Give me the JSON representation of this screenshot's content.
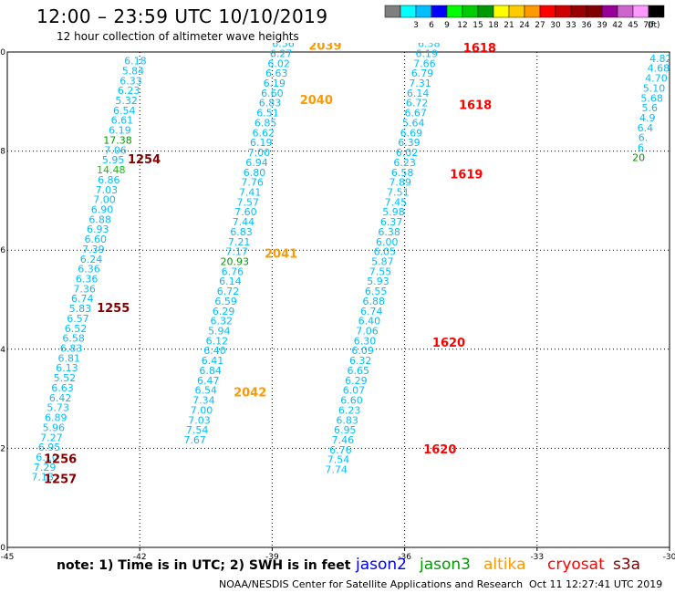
{
  "header": {
    "title": "12:00 – 23:59 UTC 10/10/2019",
    "subtitle": "12 hour collection of altimeter wave heights"
  },
  "colorbar": {
    "unit": "(ft)",
    "bins": [
      {
        "label": "",
        "color": "#7f7f7f"
      },
      {
        "label": "3",
        "color": "#00ffff"
      },
      {
        "label": "6",
        "color": "#00bfff"
      },
      {
        "label": "9",
        "color": "#0000ff"
      },
      {
        "label": "12",
        "color": "#00ff00"
      },
      {
        "label": "15",
        "color": "#00cc00"
      },
      {
        "label": "18",
        "color": "#009900"
      },
      {
        "label": "21",
        "color": "#ffff00"
      },
      {
        "label": "24",
        "color": "#ffcc00"
      },
      {
        "label": "27",
        "color": "#ff9900"
      },
      {
        "label": "30",
        "color": "#ff0000"
      },
      {
        "label": "33",
        "color": "#cc0000"
      },
      {
        "label": "36",
        "color": "#990000"
      },
      {
        "label": "39",
        "color": "#800000"
      },
      {
        "label": "42",
        "color": "#990099"
      },
      {
        "label": "45",
        "color": "#cc66cc"
      },
      {
        "label": "70",
        "color": "#ff99ff"
      },
      {
        "label": "",
        "color": "#000000"
      }
    ]
  },
  "footer": {
    "note": "note:  1) Time is in UTC;  2) SWH is in feet",
    "satellites": [
      {
        "name": "jason2",
        "color": "#0000ff"
      },
      {
        "name": "jason3",
        "color": "#009900"
      },
      {
        "name": "altika",
        "color": "#ff9900"
      },
      {
        "name": "cryosat",
        "color": "#ff0000"
      },
      {
        "name": "s3a",
        "color": "#800000"
      }
    ],
    "credit": "NOAA/NESDIS Center for Satellite Applications and Research",
    "timestamp": "Oct 11 12:27:41 UTC 2019"
  },
  "chart_data": {
    "type": "scatter",
    "title": "12:00 – 23:59 UTC 10/10/2019",
    "xlim": [
      -45,
      -30
    ],
    "ylim": [
      0,
      10
    ],
    "x_ticks": [
      "-45",
      "-42",
      "-39",
      "-36",
      "-33",
      "-30"
    ],
    "y_ticks": [
      "0",
      "2",
      "4",
      "6",
      "8",
      "10"
    ],
    "grid": true,
    "colors": {
      "swh": "#00bfff",
      "green": "#009900",
      "lime": "#00cc00"
    },
    "tracks": [
      {
        "name": "s3a pass A",
        "color": "#00bfff",
        "points": [
          {
            "x": -42.1,
            "y": 9.75,
            "v": "6.18"
          },
          {
            "x": -42.15,
            "y": 9.55,
            "v": "5.84"
          },
          {
            "x": -42.2,
            "y": 9.35,
            "v": "6.33"
          },
          {
            "x": -42.25,
            "y": 9.15,
            "v": "6.23"
          },
          {
            "x": -42.3,
            "y": 8.95,
            "v": "5.32"
          },
          {
            "x": -42.35,
            "y": 8.75,
            "v": "6.54"
          },
          {
            "x": -42.4,
            "y": 8.55,
            "v": "6.61"
          },
          {
            "x": -42.45,
            "y": 8.35,
            "v": "6.19"
          },
          {
            "x": -42.5,
            "y": 8.15,
            "v": "17.38",
            "c": "#009900"
          },
          {
            "x": -42.55,
            "y": 7.95,
            "v": "7.06"
          },
          {
            "x": -42.6,
            "y": 7.75,
            "v": "5.95"
          },
          {
            "x": -42.65,
            "y": 7.55,
            "v": "14.48",
            "c": "#00cc00"
          },
          {
            "x": -42.7,
            "y": 7.35,
            "v": "6.86"
          },
          {
            "x": -42.75,
            "y": 7.15,
            "v": "7.03"
          },
          {
            "x": -42.8,
            "y": 6.95,
            "v": "7.00"
          },
          {
            "x": -42.85,
            "y": 6.75,
            "v": "6.90"
          },
          {
            "x": -42.9,
            "y": 6.55,
            "v": "6.88"
          },
          {
            "x": -42.95,
            "y": 6.35,
            "v": "6.93"
          },
          {
            "x": -43.0,
            "y": 6.15,
            "v": "6.60"
          },
          {
            "x": -43.05,
            "y": 5.95,
            "v": "7.39"
          },
          {
            "x": -43.1,
            "y": 5.75,
            "v": "6.24"
          },
          {
            "x": -43.15,
            "y": 5.55,
            "v": "6.36"
          },
          {
            "x": -43.2,
            "y": 5.35,
            "v": "6.36"
          },
          {
            "x": -43.25,
            "y": 5.15,
            "v": "7.36"
          },
          {
            "x": -43.3,
            "y": 4.95,
            "v": "6.74"
          },
          {
            "x": -43.35,
            "y": 4.75,
            "v": "5.83"
          },
          {
            "x": -43.4,
            "y": 4.55,
            "v": "6.57"
          },
          {
            "x": -43.45,
            "y": 4.35,
            "v": "6.52"
          },
          {
            "x": -43.5,
            "y": 4.15,
            "v": "6.58"
          },
          {
            "x": -43.55,
            "y": 3.95,
            "v": "6.83"
          },
          {
            "x": -43.6,
            "y": 3.75,
            "v": "6.81"
          },
          {
            "x": -43.65,
            "y": 3.55,
            "v": "6.13"
          },
          {
            "x": -43.7,
            "y": 3.35,
            "v": "5.52"
          },
          {
            "x": -43.75,
            "y": 3.15,
            "v": "6.63"
          },
          {
            "x": -43.8,
            "y": 2.95,
            "v": "6.42"
          },
          {
            "x": -43.85,
            "y": 2.75,
            "v": "5.73"
          },
          {
            "x": -43.9,
            "y": 2.55,
            "v": "6.89"
          },
          {
            "x": -43.95,
            "y": 2.35,
            "v": "5.96"
          },
          {
            "x": -44.0,
            "y": 2.15,
            "v": "7.27"
          },
          {
            "x": -44.05,
            "y": 1.95,
            "v": "6.95"
          },
          {
            "x": -44.1,
            "y": 1.75,
            "v": "6.10"
          },
          {
            "x": -44.15,
            "y": 1.55,
            "v": "7.29"
          },
          {
            "x": -44.2,
            "y": 1.35,
            "v": "7.13"
          }
        ]
      },
      {
        "name": "altika pass",
        "color": "#00bfff",
        "points": [
          {
            "x": -38.75,
            "y": 10.1,
            "v": "6.56"
          },
          {
            "x": -38.8,
            "y": 9.9,
            "v": "6.27"
          },
          {
            "x": -38.85,
            "y": 9.7,
            "v": "6.02"
          },
          {
            "x": -38.9,
            "y": 9.5,
            "v": "6.63"
          },
          {
            "x": -38.95,
            "y": 9.3,
            "v": "6.19"
          },
          {
            "x": -39.0,
            "y": 9.1,
            "v": "6.60"
          },
          {
            "x": -39.05,
            "y": 8.9,
            "v": "6.83"
          },
          {
            "x": -39.1,
            "y": 8.7,
            "v": "6.51"
          },
          {
            "x": -39.15,
            "y": 8.5,
            "v": "6.85"
          },
          {
            "x": -39.2,
            "y": 8.3,
            "v": "6.62"
          },
          {
            "x": -39.25,
            "y": 8.1,
            "v": "6.19"
          },
          {
            "x": -39.3,
            "y": 7.9,
            "v": "7.00"
          },
          {
            "x": -39.35,
            "y": 7.7,
            "v": "6.94"
          },
          {
            "x": -39.4,
            "y": 7.5,
            "v": "6.80"
          },
          {
            "x": -39.45,
            "y": 7.3,
            "v": "7.76"
          },
          {
            "x": -39.5,
            "y": 7.1,
            "v": "7.41"
          },
          {
            "x": -39.55,
            "y": 6.9,
            "v": "7.57"
          },
          {
            "x": -39.6,
            "y": 6.7,
            "v": "7.60"
          },
          {
            "x": -39.65,
            "y": 6.5,
            "v": "7.44"
          },
          {
            "x": -39.7,
            "y": 6.3,
            "v": "6.83"
          },
          {
            "x": -39.75,
            "y": 6.1,
            "v": "7.21"
          },
          {
            "x": -39.8,
            "y": 5.9,
            "v": "7.17"
          },
          {
            "x": -39.85,
            "y": 5.7,
            "v": "20.93",
            "c": "#009900"
          },
          {
            "x": -39.9,
            "y": 5.5,
            "v": "6.76"
          },
          {
            "x": -39.95,
            "y": 5.3,
            "v": "6.14"
          },
          {
            "x": -40.0,
            "y": 5.1,
            "v": "6.72"
          },
          {
            "x": -40.05,
            "y": 4.9,
            "v": "6.59"
          },
          {
            "x": -40.1,
            "y": 4.7,
            "v": "6.29"
          },
          {
            "x": -40.15,
            "y": 4.5,
            "v": "6.32"
          },
          {
            "x": -40.2,
            "y": 4.3,
            "v": "5.94"
          },
          {
            "x": -40.25,
            "y": 4.1,
            "v": "6.12"
          },
          {
            "x": -40.3,
            "y": 3.9,
            "v": "6.40"
          },
          {
            "x": -40.35,
            "y": 3.7,
            "v": "6.41"
          },
          {
            "x": -40.4,
            "y": 3.5,
            "v": "6.84"
          },
          {
            "x": -40.45,
            "y": 3.3,
            "v": "6.47"
          },
          {
            "x": -40.5,
            "y": 3.1,
            "v": "6.54"
          },
          {
            "x": -40.55,
            "y": 2.9,
            "v": "7.34"
          },
          {
            "x": -40.6,
            "y": 2.7,
            "v": "7.00"
          },
          {
            "x": -40.65,
            "y": 2.5,
            "v": "7.03"
          },
          {
            "x": -40.7,
            "y": 2.3,
            "v": "7.54"
          },
          {
            "x": -40.75,
            "y": 2.1,
            "v": "7.67"
          }
        ]
      },
      {
        "name": "cryosat pass",
        "color": "#00bfff",
        "points": [
          {
            "x": -35.45,
            "y": 10.1,
            "v": "6.38"
          },
          {
            "x": -35.5,
            "y": 9.9,
            "v": "6.19"
          },
          {
            "x": -35.55,
            "y": 9.7,
            "v": "7.66"
          },
          {
            "x": -35.6,
            "y": 9.5,
            "v": "6.79"
          },
          {
            "x": -35.65,
            "y": 9.3,
            "v": "7.31"
          },
          {
            "x": -35.7,
            "y": 9.1,
            "v": "6.14"
          },
          {
            "x": -35.72,
            "y": 8.9,
            "v": "6.72"
          },
          {
            "x": -35.75,
            "y": 8.7,
            "v": "6.67"
          },
          {
            "x": -35.8,
            "y": 8.5,
            "v": "5.64"
          },
          {
            "x": -35.85,
            "y": 8.3,
            "v": "6.69"
          },
          {
            "x": -35.9,
            "y": 8.1,
            "v": "6.39"
          },
          {
            "x": -35.95,
            "y": 7.9,
            "v": "6.02"
          },
          {
            "x": -36.0,
            "y": 7.7,
            "v": "6.23"
          },
          {
            "x": -36.05,
            "y": 7.5,
            "v": "6.58"
          },
          {
            "x": -36.1,
            "y": 7.3,
            "v": "7.89"
          },
          {
            "x": -36.15,
            "y": 7.1,
            "v": "7.51"
          },
          {
            "x": -36.2,
            "y": 6.9,
            "v": "7.45"
          },
          {
            "x": -36.25,
            "y": 6.7,
            "v": "5.98"
          },
          {
            "x": -36.3,
            "y": 6.5,
            "v": "6.37"
          },
          {
            "x": -36.35,
            "y": 6.3,
            "v": "6.38"
          },
          {
            "x": -36.4,
            "y": 6.1,
            "v": "6.00"
          },
          {
            "x": -36.45,
            "y": 5.9,
            "v": "6.05"
          },
          {
            "x": -36.5,
            "y": 5.7,
            "v": "5.87"
          },
          {
            "x": -36.55,
            "y": 5.5,
            "v": "7.55"
          },
          {
            "x": -36.6,
            "y": 5.3,
            "v": "5.93"
          },
          {
            "x": -36.65,
            "y": 5.1,
            "v": "6.55"
          },
          {
            "x": -36.7,
            "y": 4.9,
            "v": "6.88"
          },
          {
            "x": -36.75,
            "y": 4.7,
            "v": "6.74"
          },
          {
            "x": -36.8,
            "y": 4.5,
            "v": "6.40"
          },
          {
            "x": -36.85,
            "y": 4.3,
            "v": "7.06"
          },
          {
            "x": -36.9,
            "y": 4.1,
            "v": "6.30"
          },
          {
            "x": -36.95,
            "y": 3.9,
            "v": "6.09"
          },
          {
            "x": -37.0,
            "y": 3.7,
            "v": "6.32"
          },
          {
            "x": -37.05,
            "y": 3.5,
            "v": "6.65"
          },
          {
            "x": -37.1,
            "y": 3.3,
            "v": "6.29"
          },
          {
            "x": -37.15,
            "y": 3.1,
            "v": "6.07"
          },
          {
            "x": -37.2,
            "y": 2.9,
            "v": "6.60"
          },
          {
            "x": -37.25,
            "y": 2.7,
            "v": "6.23"
          },
          {
            "x": -37.3,
            "y": 2.5,
            "v": "6.83"
          },
          {
            "x": -37.35,
            "y": 2.3,
            "v": "6.95"
          },
          {
            "x": -37.4,
            "y": 2.1,
            "v": "7.46"
          },
          {
            "x": -37.45,
            "y": 1.9,
            "v": "6.76"
          },
          {
            "x": -37.5,
            "y": 1.7,
            "v": "7.54"
          },
          {
            "x": -37.55,
            "y": 1.5,
            "v": "7.74"
          }
        ]
      },
      {
        "name": "partial pass east",
        "color": "#00bfff",
        "points": [
          {
            "x": -30.2,
            "y": 9.8,
            "v": "4.82"
          },
          {
            "x": -30.25,
            "y": 9.6,
            "v": "4.68"
          },
          {
            "x": -30.3,
            "y": 9.4,
            "v": "4.70"
          },
          {
            "x": -30.35,
            "y": 9.2,
            "v": "5.10"
          },
          {
            "x": -30.4,
            "y": 9.0,
            "v": "5.68"
          },
          {
            "x": -30.45,
            "y": 8.8,
            "v": "5.6"
          },
          {
            "x": -30.5,
            "y": 8.6,
            "v": "4.9"
          },
          {
            "x": -30.55,
            "y": 8.4,
            "v": "6.4"
          },
          {
            "x": -30.6,
            "y": 8.2,
            "v": "6."
          },
          {
            "x": -30.65,
            "y": 8.0,
            "v": "6"
          },
          {
            "x": -30.7,
            "y": 7.8,
            "v": "20",
            "c": "#009900"
          }
        ]
      }
    ],
    "track_labels": [
      {
        "text": "2039",
        "x": -37.8,
        "y": 10.05,
        "color": "#ff9900"
      },
      {
        "text": "2040",
        "x": -38.0,
        "y": 8.95,
        "color": "#ff9900"
      },
      {
        "text": "2041",
        "x": -38.8,
        "y": 5.85,
        "color": "#ff9900"
      },
      {
        "text": "2042",
        "x": -39.5,
        "y": 3.05,
        "color": "#ff9900"
      },
      {
        "text": "1618",
        "x": -34.3,
        "y": 10.0,
        "color": "#ff0000"
      },
      {
        "text": "1618",
        "x": -34.4,
        "y": 8.85,
        "color": "#ff0000"
      },
      {
        "text": "1619",
        "x": -34.6,
        "y": 7.45,
        "color": "#ff0000"
      },
      {
        "text": "1620",
        "x": -35.0,
        "y": 4.05,
        "color": "#ff0000"
      },
      {
        "text": "1620",
        "x": -35.2,
        "y": 1.9,
        "color": "#ff0000"
      },
      {
        "text": "1254",
        "x": -41.9,
        "y": 7.75,
        "color": "#800000"
      },
      {
        "text": "1255",
        "x": -42.6,
        "y": 4.75,
        "color": "#800000"
      },
      {
        "text": "1256",
        "x": -43.8,
        "y": 1.7,
        "color": "#800000"
      },
      {
        "text": "1257",
        "x": -43.8,
        "y": 1.3,
        "color": "#800000"
      }
    ]
  }
}
